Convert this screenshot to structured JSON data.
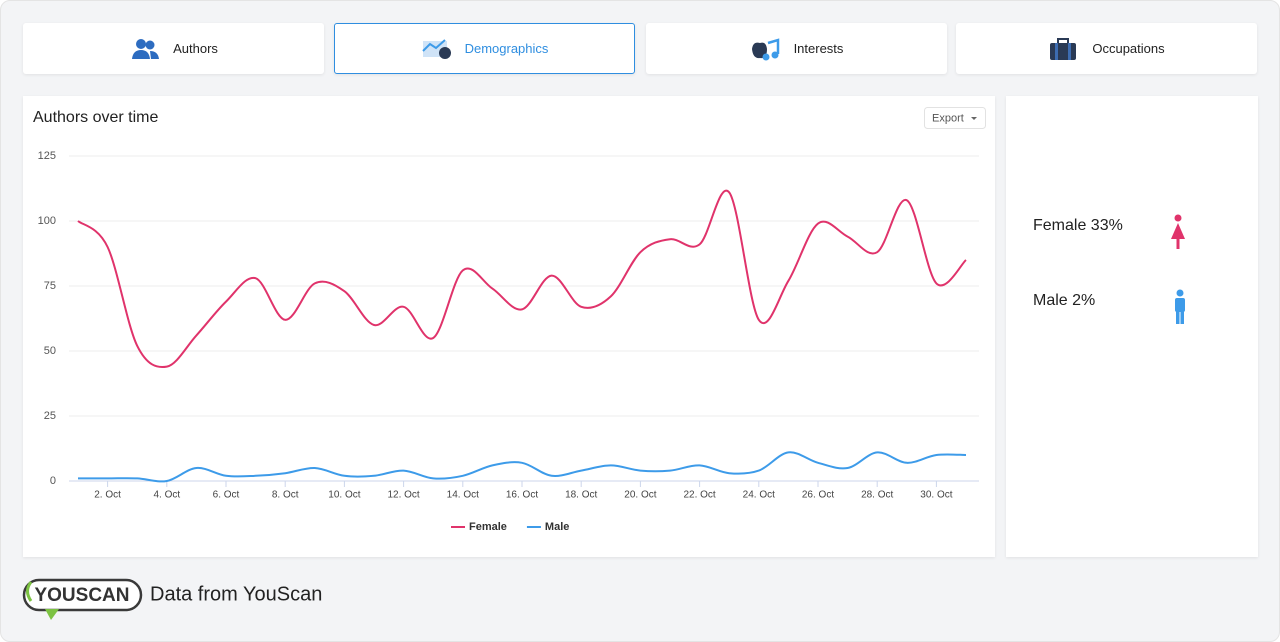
{
  "tabs": [
    {
      "label": "Authors"
    },
    {
      "label": "Demographics"
    },
    {
      "label": "Interests"
    },
    {
      "label": "Occupations"
    }
  ],
  "selected_tab": 1,
  "export": "Export",
  "chart_data": {
    "type": "line",
    "title": "Authors over time",
    "categories": [
      null,
      "2. Oct",
      null,
      "4. Oct",
      null,
      "6. Oct",
      null,
      "8. Oct",
      null,
      "10. Oct",
      null,
      "12. Oct",
      null,
      "14. Oct",
      null,
      "16. Oct",
      null,
      "18. Oct",
      null,
      "20. Oct",
      null,
      "22. Oct",
      null,
      "24. Oct",
      null,
      "26. Oct",
      null,
      "28. Oct",
      null,
      "30. Oct",
      null
    ],
    "series": [
      {
        "name": "Female",
        "color": "#e0336b",
        "values": [
          100,
          90,
          52,
          44,
          56,
          69,
          78,
          62,
          76,
          73,
          60,
          67,
          55,
          81,
          74,
          66,
          79,
          67,
          71,
          88,
          93,
          91,
          111,
          62,
          77,
          99,
          94,
          88,
          108,
          76,
          85
        ]
      },
      {
        "name": "Male",
        "color": "#3d9be9",
        "values": [
          1,
          1,
          1,
          0,
          5,
          2,
          2,
          3,
          5,
          2,
          2,
          4,
          1,
          2,
          6,
          7,
          2,
          4,
          6,
          4,
          4,
          6,
          3,
          4,
          11,
          7,
          5,
          11,
          7,
          10,
          10
        ]
      }
    ],
    "ylim": [
      0,
      125
    ],
    "yticks": [
      0,
      25,
      50,
      75,
      100,
      125
    ],
    "grid": true
  },
  "summary": [
    {
      "label": "Female 33%"
    },
    {
      "label": "Male 2%"
    }
  ],
  "footer": {
    "logo": "YOUSCAN",
    "text": "Data from YouScan"
  }
}
